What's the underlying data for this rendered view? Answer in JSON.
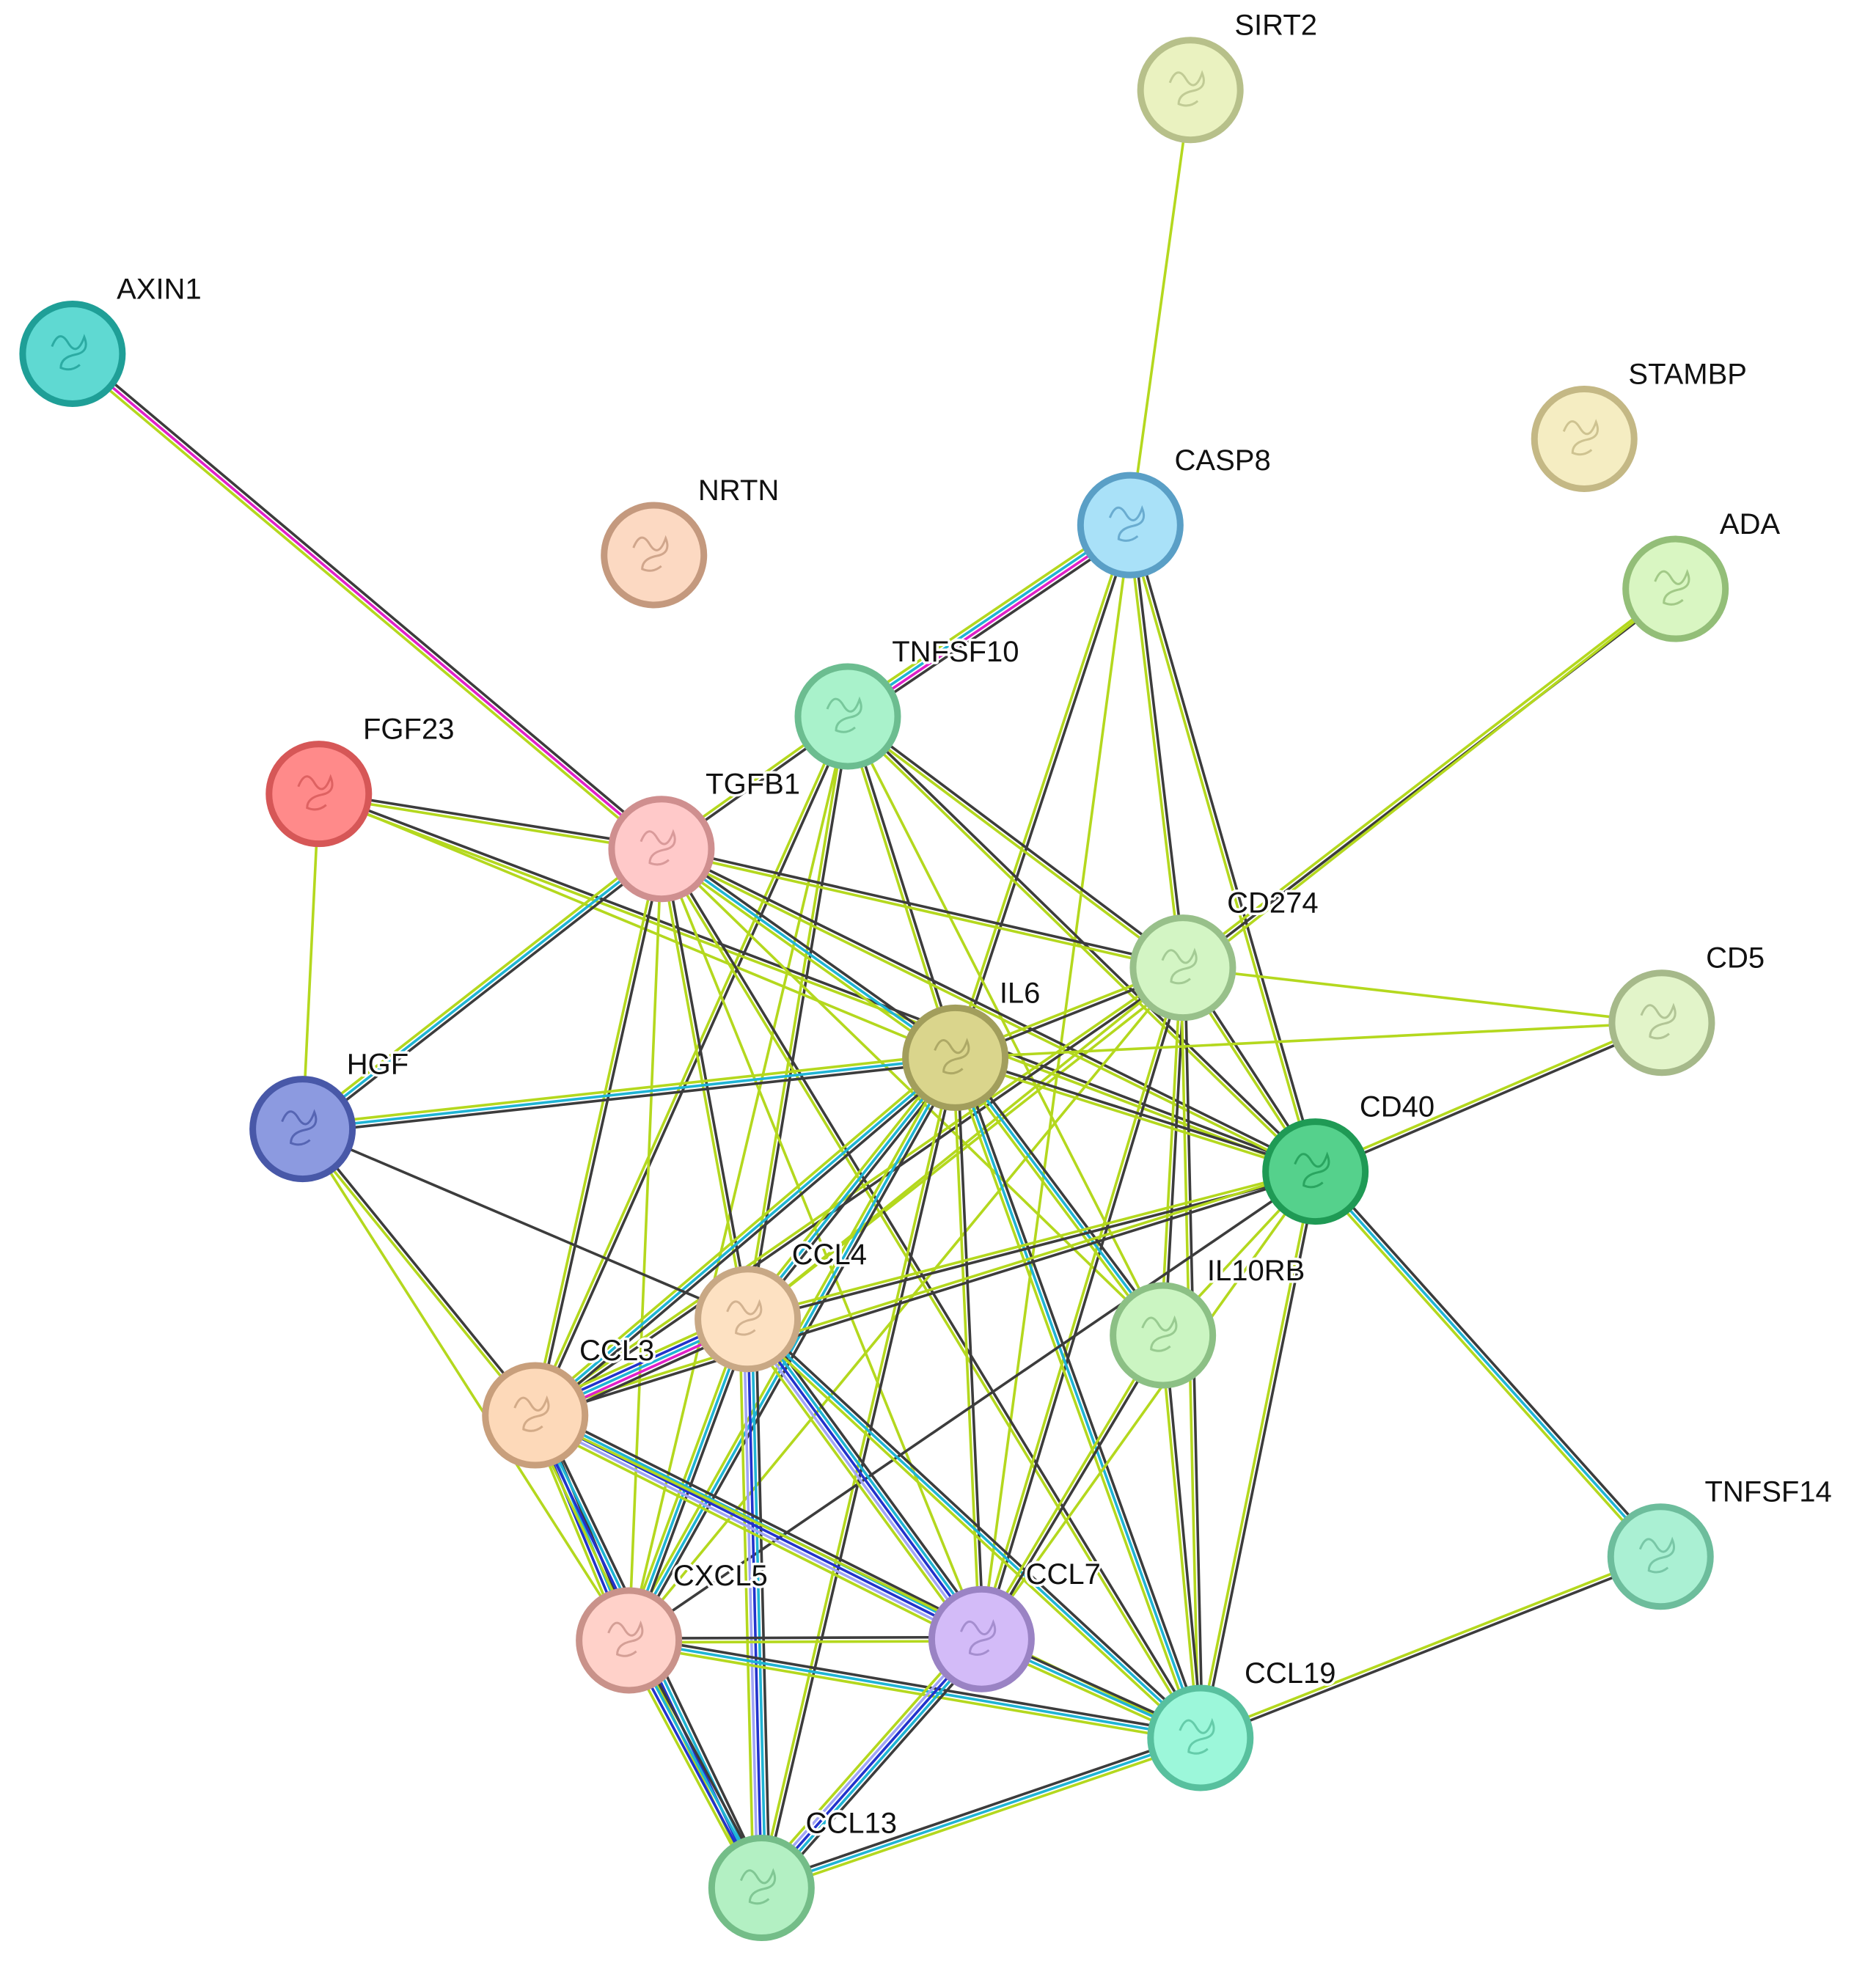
{
  "nodes": [
    {
      "label": "SIRT2"
    },
    {
      "label": "AXIN1"
    },
    {
      "label": "STAMBP"
    },
    {
      "label": "NRTN"
    },
    {
      "label": "CASP8"
    },
    {
      "label": "ADA"
    },
    {
      "label": "TNFSF10"
    },
    {
      "label": "FGF23"
    },
    {
      "label": "TGFB1"
    },
    {
      "label": "CD274"
    },
    {
      "label": "CD5"
    },
    {
      "label": "IL6"
    },
    {
      "label": "HGF"
    },
    {
      "label": "CD40"
    },
    {
      "label": "CCL4"
    },
    {
      "label": "IL10RB"
    },
    {
      "label": "CCL3"
    },
    {
      "label": "TNFSF14"
    },
    {
      "label": "CXCL5"
    },
    {
      "label": "CCL7"
    },
    {
      "label": "CCL19"
    },
    {
      "label": "CCL13"
    }
  ]
}
